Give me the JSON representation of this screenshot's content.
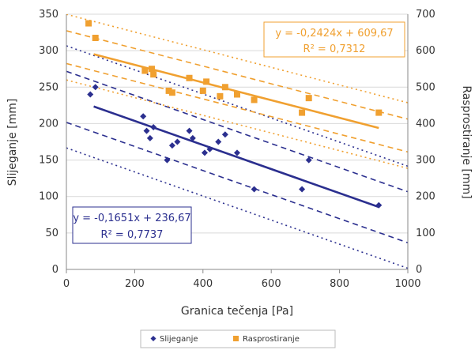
{
  "chart_data": {
    "type": "scatter",
    "xlabel": "Granica tečenja [Pa]",
    "ylabel": "Slijeganje [mm]",
    "y2label": "Rasprostiranje [mm]",
    "xlim": [
      0,
      1000
    ],
    "ylim": [
      0,
      350
    ],
    "y2lim": [
      0,
      700
    ],
    "x_ticks": [
      "0",
      "200",
      "400",
      "600",
      "800",
      "1000"
    ],
    "y_ticks": [
      "0",
      "50",
      "100",
      "150",
      "200",
      "250",
      "300",
      "350"
    ],
    "y2_ticks": [
      "0",
      "100",
      "200",
      "300",
      "400",
      "500",
      "600",
      "700"
    ],
    "grid": "horizontal",
    "legend_position": "bottom",
    "series": [
      {
        "name": "Slijeganje",
        "axis": "left",
        "color": "#2b2f8f",
        "marker": "diamond",
        "points": [
          [
            70,
            240
          ],
          [
            85,
            250
          ],
          [
            225,
            210
          ],
          [
            235,
            190
          ],
          [
            245,
            180
          ],
          [
            255,
            195
          ],
          [
            295,
            150
          ],
          [
            310,
            170
          ],
          [
            325,
            175
          ],
          [
            360,
            190
          ],
          [
            370,
            180
          ],
          [
            405,
            160
          ],
          [
            420,
            165
          ],
          [
            445,
            175
          ],
          [
            465,
            185
          ],
          [
            500,
            160
          ],
          [
            550,
            110
          ],
          [
            690,
            110
          ],
          [
            710,
            150
          ],
          [
            915,
            88
          ]
        ],
        "trendline": {
          "equation": "y = -0,1651x + 236,67",
          "r2": "R² = 0,7737",
          "slope": -0.1651,
          "intercept": 236.67,
          "x_range": [
            80,
            915
          ],
          "confidence_offset": 35,
          "prediction_offset": 70
        }
      },
      {
        "name": "Rasprostiranje",
        "axis": "right",
        "color": "#f0a030",
        "marker": "square",
        "points": [
          [
            65,
            675
          ],
          [
            85,
            635
          ],
          [
            230,
            545
          ],
          [
            250,
            550
          ],
          [
            255,
            535
          ],
          [
            300,
            490
          ],
          [
            310,
            485
          ],
          [
            360,
            525
          ],
          [
            400,
            490
          ],
          [
            410,
            515
          ],
          [
            450,
            475
          ],
          [
            465,
            500
          ],
          [
            500,
            480
          ],
          [
            550,
            465
          ],
          [
            690,
            430
          ],
          [
            710,
            470
          ],
          [
            915,
            430
          ]
        ],
        "trendline": {
          "equation": "y = -0,2424x + 609,67",
          "r2": "R² = 0,7312",
          "slope": -0.2424,
          "intercept": 609.67,
          "x_range": [
            80,
            915
          ],
          "confidence_offset": 45,
          "prediction_offset": 90
        }
      }
    ]
  }
}
